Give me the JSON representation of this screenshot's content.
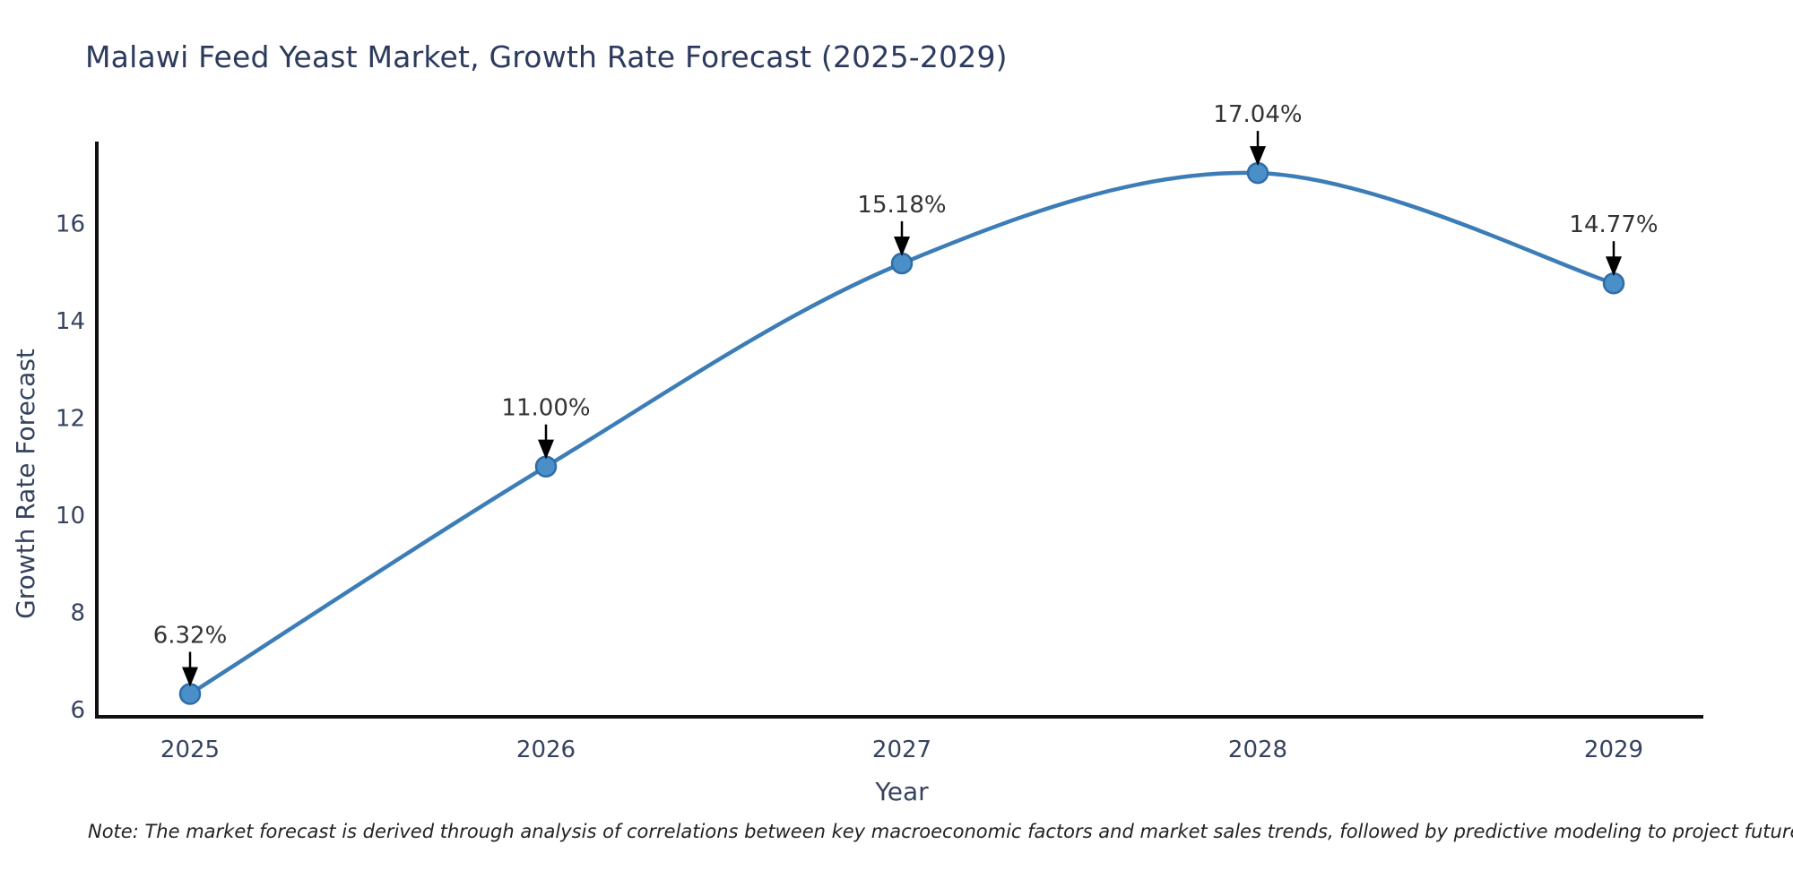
{
  "title": "Malawi Feed Yeast Market, Growth Rate Forecast (2025-2029)",
  "note": "Note: The market forecast is derived through analysis of correlations between key macroeconomic factors and market sales trends, followed by predictive modeling to project future sales",
  "chart_data": {
    "type": "line",
    "title": "Malawi Feed Yeast Market, Growth Rate Forecast (2025-2029)",
    "xlabel": "Year",
    "ylabel": "Growth Rate Forecast",
    "x": [
      2025,
      2026,
      2027,
      2028,
      2029
    ],
    "y": [
      6.32,
      11.0,
      15.18,
      17.04,
      14.77
    ],
    "point_labels": [
      "6.32%",
      "11.00%",
      "15.18%",
      "17.04%",
      "14.77%"
    ],
    "xticks": [
      "2025",
      "2026",
      "2027",
      "2028",
      "2029"
    ],
    "yticks": [
      6,
      8,
      10,
      12,
      14,
      16
    ],
    "ylim": [
      5.85,
      17.65
    ],
    "xlim": [
      2025,
      2029
    ],
    "line_shape": "spline",
    "grid": false,
    "legend": "none",
    "colors": {
      "line": "#3c7db8",
      "marker_fill": "#4b8fc9",
      "marker_edge": "#2f6ca8",
      "spine": "#111111",
      "title": "#2c3a5e",
      "tick_label": "#36435f",
      "axis_label": "#36435f",
      "annotation_text": "#333333",
      "arrow": "#000000"
    }
  }
}
